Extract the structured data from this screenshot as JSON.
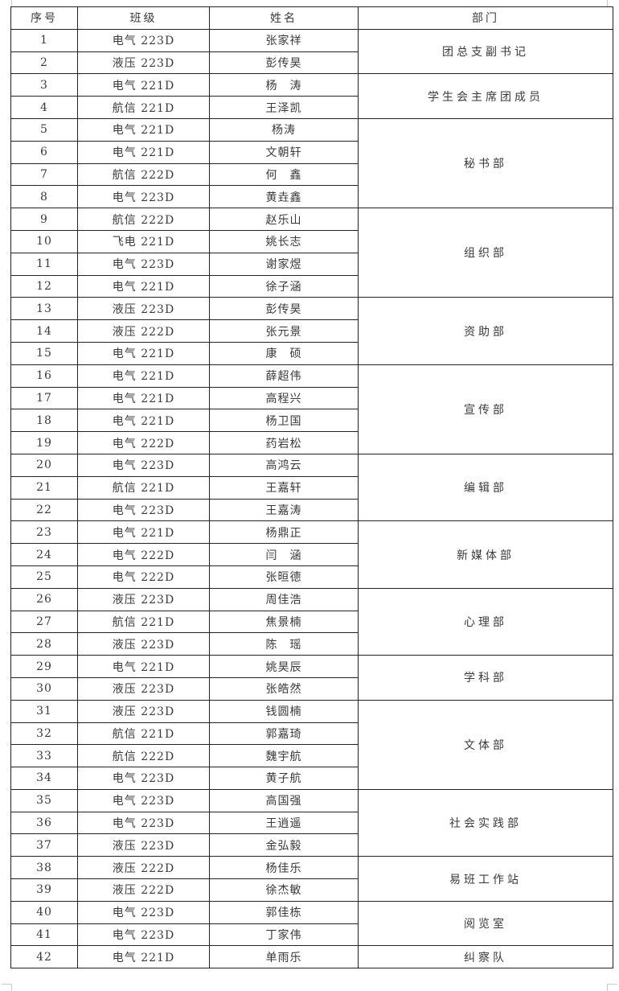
{
  "headers": [
    "序号",
    "班级",
    "姓名",
    "部门"
  ],
  "rows": [
    {
      "no": "1",
      "class": "电气 223D",
      "name": "张家祥"
    },
    {
      "no": "2",
      "class": "液压 223D",
      "name": "彭传昊"
    },
    {
      "no": "3",
      "class": "电气 221D",
      "name": "杨　涛"
    },
    {
      "no": "4",
      "class": "航信 221D",
      "name": "王泽凯"
    },
    {
      "no": "5",
      "class": "电气 221D",
      "name": "杨涛"
    },
    {
      "no": "6",
      "class": "电气 221D",
      "name": "文朝轩"
    },
    {
      "no": "7",
      "class": "航信 222D",
      "name": "何　鑫"
    },
    {
      "no": "8",
      "class": "电气 223D",
      "name": "黄垚鑫"
    },
    {
      "no": "9",
      "class": "航信 222D",
      "name": "赵乐山"
    },
    {
      "no": "10",
      "class": "飞电 221D",
      "name": "姚长志"
    },
    {
      "no": "11",
      "class": "电气 223D",
      "name": "谢家煜"
    },
    {
      "no": "12",
      "class": "电气 221D",
      "name": "徐子涵"
    },
    {
      "no": "13",
      "class": "液压 223D",
      "name": "彭传昊"
    },
    {
      "no": "14",
      "class": "液压 222D",
      "name": "张元景"
    },
    {
      "no": "15",
      "class": "电气 221D",
      "name": "康　硕"
    },
    {
      "no": "16",
      "class": "电气 221D",
      "name": "薛超伟"
    },
    {
      "no": "17",
      "class": "电气 221D",
      "name": "高程兴"
    },
    {
      "no": "18",
      "class": "电气 221D",
      "name": "杨卫国"
    },
    {
      "no": "19",
      "class": "电气 222D",
      "name": "药岩松"
    },
    {
      "no": "20",
      "class": "电气 223D",
      "name": "高鸿云"
    },
    {
      "no": "21",
      "class": "航信 221D",
      "name": "王嘉轩"
    },
    {
      "no": "22",
      "class": "电气 223D",
      "name": "王嘉涛"
    },
    {
      "no": "23",
      "class": "电气 221D",
      "name": "杨鼎正"
    },
    {
      "no": "24",
      "class": "电气 222D",
      "name": "闫　涵"
    },
    {
      "no": "25",
      "class": "电气 222D",
      "name": "张晅德"
    },
    {
      "no": "26",
      "class": "液压 223D",
      "name": "周佳浩"
    },
    {
      "no": "27",
      "class": "航信 221D",
      "name": "焦景楠"
    },
    {
      "no": "28",
      "class": "液压 223D",
      "name": "陈　瑶"
    },
    {
      "no": "29",
      "class": "电气 221D",
      "name": "姚昊辰"
    },
    {
      "no": "30",
      "class": "液压 223D",
      "name": "张皓然"
    },
    {
      "no": "31",
      "class": "液压 223D",
      "name": "钱圆楠"
    },
    {
      "no": "32",
      "class": "航信 221D",
      "name": "郭嘉琦"
    },
    {
      "no": "33",
      "class": "航信 222D",
      "name": "魏宇航"
    },
    {
      "no": "34",
      "class": "电气 223D",
      "name": "黄子航"
    },
    {
      "no": "35",
      "class": "电气 223D",
      "name": "高国强"
    },
    {
      "no": "36",
      "class": "电气 223D",
      "name": "王逍遥"
    },
    {
      "no": "37",
      "class": "液压 223D",
      "name": "金弘毅"
    },
    {
      "no": "38",
      "class": "液压 222D",
      "name": "杨佳乐"
    },
    {
      "no": "39",
      "class": "液压 222D",
      "name": "徐杰敏"
    },
    {
      "no": "40",
      "class": "电气 223D",
      "name": "郭佳栋"
    },
    {
      "no": "41",
      "class": "电气 223D",
      "name": "丁家伟"
    },
    {
      "no": "42",
      "class": "电气 221D",
      "name": "单雨乐"
    }
  ],
  "departments": [
    {
      "name": "团总支副书记",
      "rows": 2
    },
    {
      "name": "学生会主席团成员",
      "rows": 2
    },
    {
      "name": "秘书部",
      "rows": 4
    },
    {
      "name": "组织部",
      "rows": 4
    },
    {
      "name": "资助部",
      "rows": 3
    },
    {
      "name": "宣传部",
      "rows": 4
    },
    {
      "name": "编辑部",
      "rows": 3
    },
    {
      "name": "新媒体部",
      "rows": 3
    },
    {
      "name": "心理部",
      "rows": 3
    },
    {
      "name": "学科部",
      "rows": 2
    },
    {
      "name": "文体部",
      "rows": 4
    },
    {
      "name": "社会实践部",
      "rows": 3
    },
    {
      "name": "易班工作站",
      "rows": 2
    },
    {
      "name": "阅览室",
      "rows": 2
    },
    {
      "name": "纠察队",
      "rows": 1
    }
  ]
}
